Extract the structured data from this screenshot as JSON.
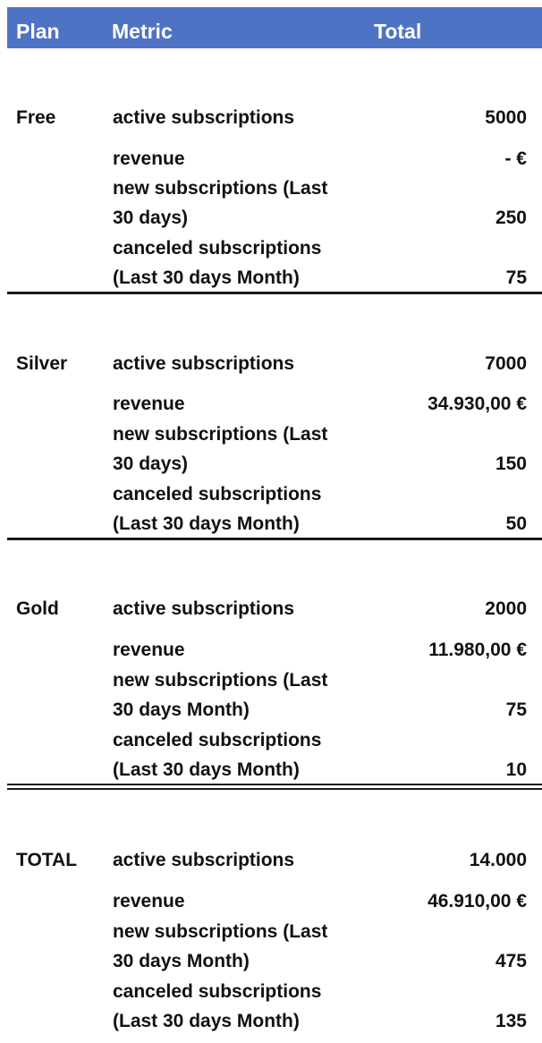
{
  "header": {
    "plan": "Plan",
    "metric": "Metric",
    "total": "Total"
  },
  "colors": {
    "header_bg": "#4f73c4",
    "header_text": "#ffffff"
  },
  "sections": [
    {
      "plan": "Free",
      "metrics": [
        {
          "label_lines": [
            "active subscriptions"
          ],
          "value": "5000"
        },
        {
          "label_lines": [
            "revenue"
          ],
          "value": "-  €"
        },
        {
          "label_lines": [
            "new subscriptions (Last",
            "30 days)"
          ],
          "value": "250"
        },
        {
          "label_lines": [
            "canceled subscriptions",
            "(Last 30 days Month)"
          ],
          "value": "75"
        }
      ]
    },
    {
      "plan": "Silver",
      "metrics": [
        {
          "label_lines": [
            "active subscriptions"
          ],
          "value": "7000"
        },
        {
          "label_lines": [
            "revenue"
          ],
          "value": "34.930,00 €"
        },
        {
          "label_lines": [
            "new subscriptions (Last",
            "30 days)"
          ],
          "value": "150"
        },
        {
          "label_lines": [
            "canceled subscriptions",
            "(Last 30 days Month)"
          ],
          "value": "50"
        }
      ]
    },
    {
      "plan": "Gold",
      "metrics": [
        {
          "label_lines": [
            "active subscriptions"
          ],
          "value": "2000"
        },
        {
          "label_lines": [
            "revenue"
          ],
          "value": "11.980,00 €"
        },
        {
          "label_lines": [
            "new subscriptions (Last",
            "30 days Month)"
          ],
          "value": "75"
        },
        {
          "label_lines": [
            "canceled subscriptions",
            "(Last 30 days Month)"
          ],
          "value": "10"
        }
      ]
    },
    {
      "plan": "TOTAL",
      "metrics": [
        {
          "label_lines": [
            "active subscriptions"
          ],
          "value": "14.000"
        },
        {
          "label_lines": [
            "revenue"
          ],
          "value": "46.910,00 €"
        },
        {
          "label_lines": [
            "new subscriptions (Last",
            "30 days Month)"
          ],
          "value": "475"
        },
        {
          "label_lines": [
            "canceled subscriptions",
            "(Last 30 days Month)"
          ],
          "value": "135"
        }
      ]
    }
  ]
}
